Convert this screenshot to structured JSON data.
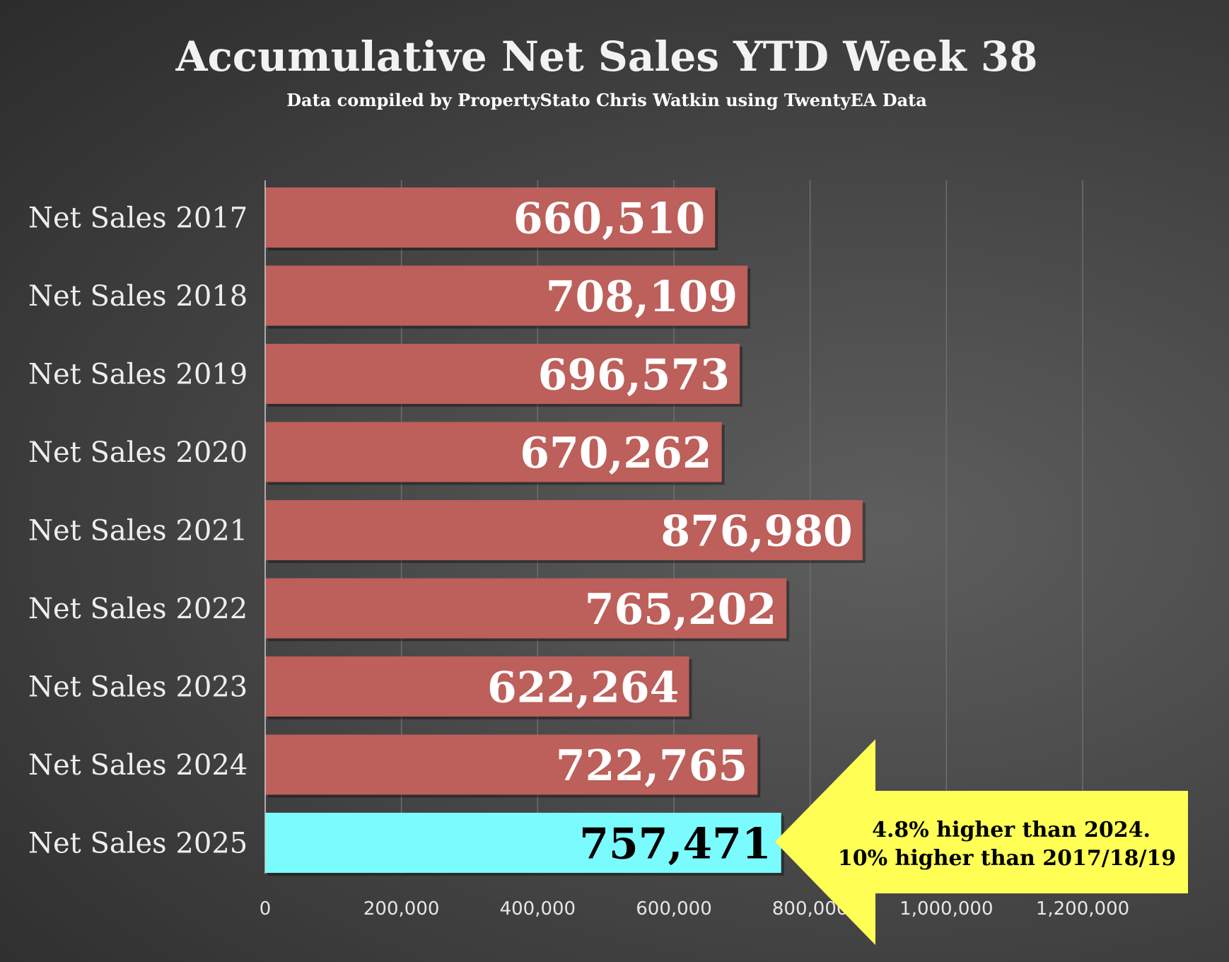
{
  "chart_data": {
    "type": "bar",
    "orientation": "horizontal",
    "title": "Accumulative Net Sales YTD Week 38",
    "subtitle": "Data compiled by PropertyStato Chris Watkin using TwentyEA Data",
    "categories": [
      "Net Sales 2017",
      "Net Sales 2018",
      "Net Sales 2019",
      "Net Sales 2020",
      "Net Sales 2021",
      "Net Sales 2022",
      "Net Sales 2023",
      "Net Sales 2024",
      "Net Sales 2025"
    ],
    "values": [
      660510,
      708109,
      696573,
      670262,
      876980,
      765202,
      622264,
      722765,
      757471
    ],
    "value_labels": [
      "660,510",
      "708,109",
      "696,573",
      "670,262",
      "876,980",
      "765,202",
      "622,264",
      "722,765",
      "757,471"
    ],
    "xlim": [
      0,
      1200000
    ],
    "x_ticks": [
      0,
      200000,
      400000,
      600000,
      800000,
      1000000,
      1200000
    ],
    "x_tick_labels": [
      "0",
      "200,000",
      "400,000",
      "600,000",
      "800,000",
      "1,000,000",
      "1,200,000"
    ],
    "grid": "vertical",
    "legend": "none",
    "colors": {
      "bar": "#bd5f5a",
      "highlight_bar": "#7afbfd",
      "bar_label": "#ffffff",
      "highlight_label": "#000000",
      "callout": "#ffff55",
      "grid": "#6e6e6e"
    },
    "highlight_index": 8,
    "annotation": {
      "lines": [
        "4.8% higher than 2024.",
        "10% higher than 2017/18/19"
      ],
      "points_to": "Net Sales 2025"
    }
  }
}
